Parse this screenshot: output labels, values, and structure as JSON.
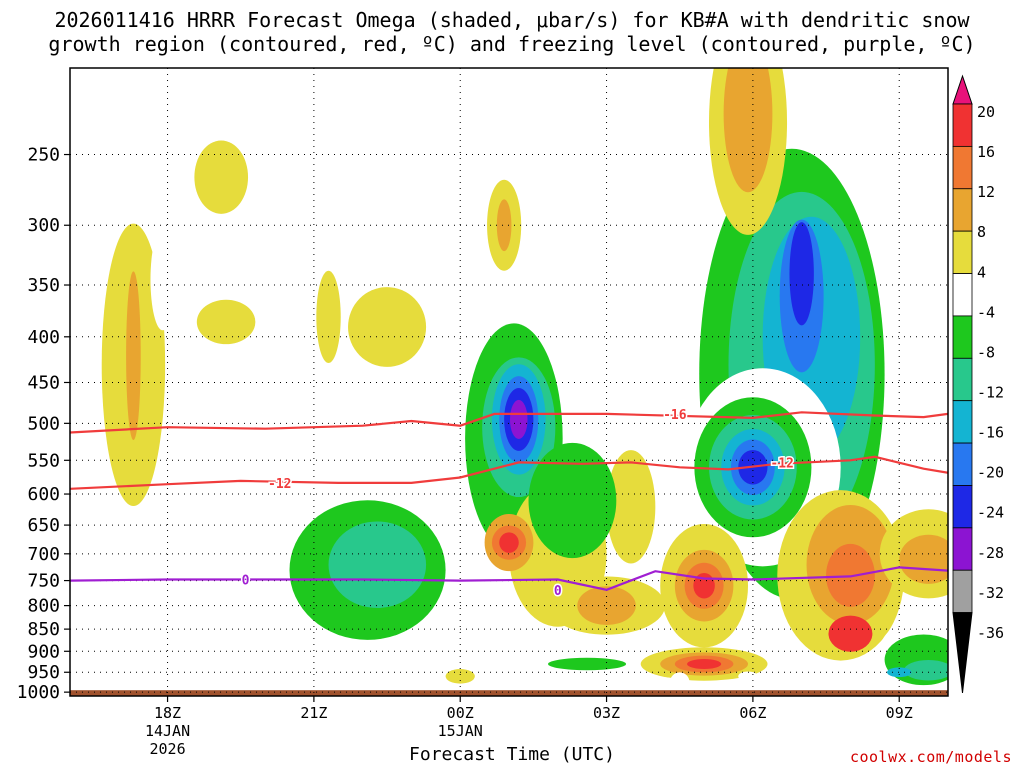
{
  "title_line1": "2026011416 HRRR Forecast Omega (shaded, μbar/s) for KB#A with dendritic snow",
  "title_line2": "growth region (contoured, red, ºC) and freezing level (contoured, purple, ºC)",
  "xaxis_title": "Forecast Time (UTC)",
  "credit": "coolwx.com/models",
  "chart_data": {
    "type": "heatmap",
    "title": "2026011416 HRRR Forecast Omega (shaded, μbar/s) for KB#A with dendritic snow growth region (contoured, red, ºC) and freezing level (contoured, purple, ºC)",
    "xlabel": "Forecast Time (UTC)",
    "ylabel": "",
    "x_range_hours_from_18Z_14JAN": [
      -2,
      16
    ],
    "x_ticks": [
      {
        "hours": 0,
        "lines": [
          "18Z",
          "14JAN",
          "2026"
        ]
      },
      {
        "hours": 3,
        "lines": [
          "21Z"
        ]
      },
      {
        "hours": 6,
        "lines": [
          "00Z",
          "15JAN"
        ]
      },
      {
        "hours": 9,
        "lines": [
          "03Z"
        ]
      },
      {
        "hours": 12,
        "lines": [
          "06Z"
        ]
      },
      {
        "hours": 15,
        "lines": [
          "09Z"
        ]
      }
    ],
    "y_ticks_mb": [
      250,
      300,
      350,
      400,
      450,
      500,
      550,
      600,
      650,
      700,
      750,
      800,
      850,
      900,
      950,
      1000
    ],
    "y_range_mb": [
      200,
      1010
    ],
    "y_scale": "log-pressure, inverted",
    "grid": "dotted",
    "colorbar": {
      "labels": [
        "20",
        "16",
        "12",
        "8",
        "4",
        "-4",
        "-8",
        "-12",
        "-16",
        "-20",
        "-24",
        "-28",
        "-32",
        "-36"
      ],
      "colors": [
        "#e8127a",
        "#f03232",
        "#f07832",
        "#e8a530",
        "#e6dc3c",
        "#ffffff",
        "#1ec81e",
        "#28c88c",
        "#14b4d2",
        "#2878f0",
        "#1e28e6",
        "#8c14d2",
        "#a0a0a0",
        "#000000"
      ]
    },
    "contour_labels": [
      "-16",
      "-12",
      "0"
    ],
    "series": [
      {
        "contour": "-16",
        "color": "#f03c3c",
        "points": [
          [
            -2,
            512
          ],
          [
            0,
            505
          ],
          [
            2,
            507
          ],
          [
            4,
            503
          ],
          [
            5,
            497
          ],
          [
            6,
            503
          ],
          [
            6.7,
            488
          ],
          [
            9,
            488
          ],
          [
            12,
            493
          ],
          [
            13,
            486
          ],
          [
            14.5,
            490
          ],
          [
            15.5,
            492
          ],
          [
            16,
            488
          ]
        ]
      },
      {
        "contour": "-12",
        "color": "#f03c3c",
        "points": [
          [
            -2,
            592
          ],
          [
            0,
            585
          ],
          [
            1.5,
            580
          ],
          [
            3.5,
            583
          ],
          [
            5,
            583
          ],
          [
            6,
            575
          ],
          [
            7.2,
            553
          ],
          [
            8.5,
            555
          ],
          [
            9.5,
            553
          ],
          [
            10.5,
            560
          ],
          [
            11.5,
            563
          ],
          [
            12.5,
            555
          ],
          [
            14,
            550
          ],
          [
            14.5,
            545
          ],
          [
            15.5,
            562
          ],
          [
            16,
            568
          ]
        ]
      },
      {
        "contour": "0",
        "color": "#a01ed2",
        "points": [
          [
            -2,
            750
          ],
          [
            0,
            748
          ],
          [
            2,
            748
          ],
          [
            4,
            748
          ],
          [
            6,
            750
          ],
          [
            8,
            748
          ],
          [
            9,
            768
          ],
          [
            10,
            732
          ],
          [
            11,
            746
          ],
          [
            12,
            748
          ],
          [
            14,
            742
          ],
          [
            15,
            725
          ],
          [
            16,
            731
          ]
        ]
      }
    ]
  }
}
